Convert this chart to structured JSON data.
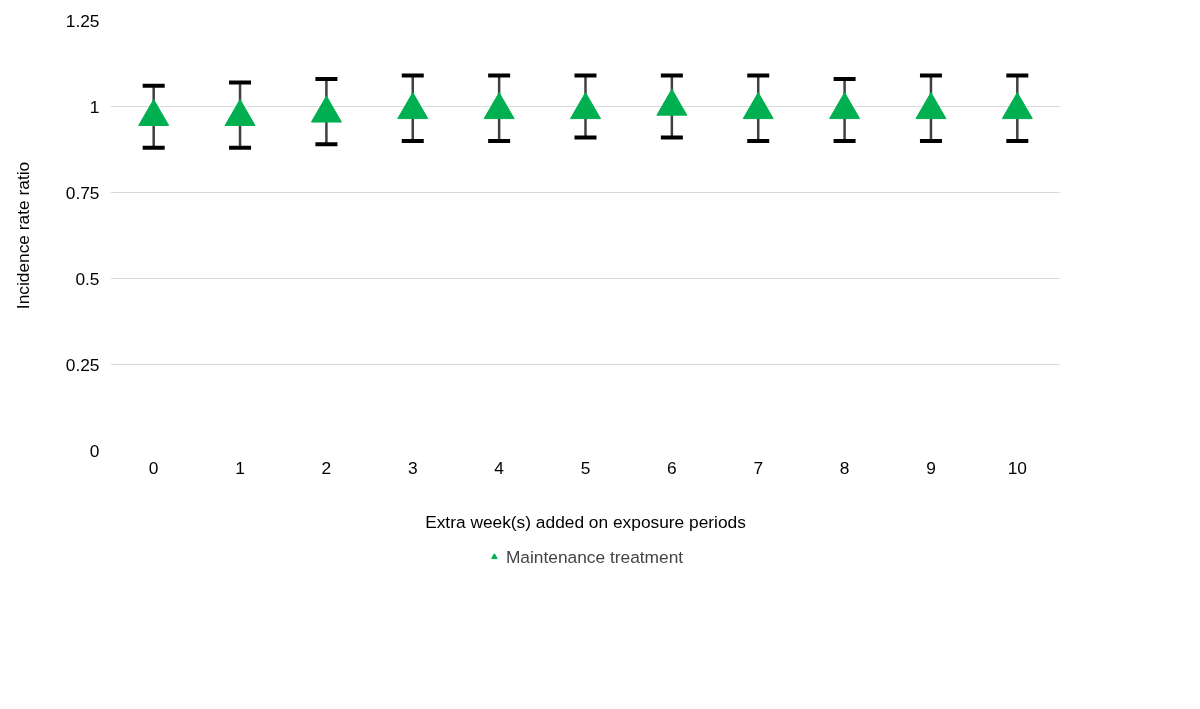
{
  "chart_data": {
    "type": "scatter",
    "xlabel": "Extra week(s) added on exposure periods",
    "ylabel": "Incidence rate ratio",
    "categories": [
      "0",
      "1",
      "2",
      "3",
      "4",
      "5",
      "6",
      "7",
      "8",
      "9",
      "10"
    ],
    "series": [
      {
        "name": "Maintenance treatment",
        "color": "#00b050",
        "values": [
          0.97,
          0.97,
          0.98,
          0.99,
          0.99,
          0.99,
          1.0,
          0.99,
          0.99,
          0.99,
          0.99
        ],
        "errors": [
          [
            0.88,
            1.06
          ],
          [
            0.88,
            1.07
          ],
          [
            0.89,
            1.08
          ],
          [
            0.9,
            1.09
          ],
          [
            0.9,
            1.09
          ],
          [
            0.91,
            1.09
          ],
          [
            0.91,
            1.09
          ],
          [
            0.9,
            1.09
          ],
          [
            0.9,
            1.08
          ],
          [
            0.9,
            1.09
          ],
          [
            0.9,
            1.09
          ]
        ]
      }
    ],
    "ylim": [
      0,
      1.25
    ],
    "yticks": [
      0,
      0.25,
      0.5,
      0.75,
      1,
      1.25
    ],
    "grid": "y",
    "legend": "bottom",
    "marker": "triangle"
  }
}
